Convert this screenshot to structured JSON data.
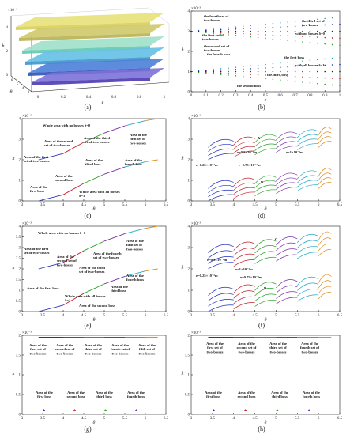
{
  "captions": [
    "(a)",
    "(b)",
    "(c)",
    "(d)",
    "(e)",
    "(f)",
    "(g)",
    "(h)"
  ],
  "axis": {
    "theta": "θ",
    "h": "h",
    "e": "e",
    "mult_e3": "×10⁻³"
  },
  "chart_data": [
    {
      "panel": "a",
      "type": "area",
      "title": "",
      "xlabel": "e",
      "ylabel": "θ",
      "zlabel": "h",
      "x_ticks": [
        "0",
        "0.2",
        "0.4",
        "0.6",
        "0.8",
        "1"
      ],
      "y_ticks": [
        "3",
        "4",
        "5",
        "6"
      ],
      "z_ticks": [
        "0",
        "2",
        "4"
      ],
      "exponent": "×10⁻³"
    },
    {
      "panel": "b",
      "type": "scatter",
      "title": "",
      "xlabel": "e",
      "ylabel": "h",
      "x_ticks": [
        "0",
        "0.1",
        "0.2",
        "0.3",
        "0.4",
        "0.5",
        "0.6",
        "0.7",
        "0.8",
        "0.9",
        "1"
      ],
      "xlim": [
        0,
        1
      ],
      "y_ticks": [
        "0",
        "1",
        "2",
        "3",
        "4"
      ],
      "ylim": [
        0,
        4
      ],
      "exponent": "×10⁻³",
      "annotations": [
        "the fourth set of two-bosses",
        "the third set of two-bosses",
        "without bosses δ=0",
        "the first set of two-bosses",
        "the second set of two-bosses",
        "the fourth boss",
        "the first boss",
        "with all bosses δ=1",
        "the third boss",
        "the second boss"
      ]
    },
    {
      "panel": "c",
      "type": "line",
      "title": "",
      "xlabel": "θ",
      "ylabel": "h",
      "x_ticks": [
        "3",
        "3.5",
        "4",
        "4.5",
        "5",
        "5.5",
        "6",
        "6.5"
      ],
      "xlim": [
        3,
        6.5
      ],
      "y_ticks": [
        "0",
        "1",
        "2",
        "3",
        "4"
      ],
      "ylim": [
        0,
        4
      ],
      "exponent": "×10⁻³",
      "series": [
        {
          "name": "",
          "x": [
            3.4,
            4.0,
            4.5,
            5.0,
            5.5,
            6.0,
            6.3
          ],
          "y": [
            2.0,
            2.3,
            2.85,
            3.3,
            3.65,
            3.9,
            4.0
          ]
        },
        {
          "name": "",
          "x": [
            3.4,
            4.0,
            4.5,
            5.0,
            5.5,
            6.0,
            6.3
          ],
          "y": [
            0.0,
            0.3,
            0.85,
            1.3,
            1.65,
            1.9,
            2.0
          ]
        }
      ],
      "annotations": [
        "Whole area with no bosses δ=0",
        "Area of the second set of two-bosses",
        "Area of the third set of two-bosses",
        "Area of the fifth set of two-bosses",
        "Area of the first set of two-bosses",
        "Area of the third boss",
        "Area of the fourth boss",
        "Area of the second boss",
        "Area of the first boss",
        "Whole area with all bosses δ=1"
      ]
    },
    {
      "panel": "d",
      "type": "line",
      "title": "",
      "xlabel": "θ",
      "ylabel": "h",
      "x_ticks": [
        "3",
        "3.5",
        "4",
        "4.5",
        "5",
        "5.5",
        "6",
        "6.5"
      ],
      "xlim": [
        3,
        6.5
      ],
      "y_ticks": [
        "0",
        "1",
        "2",
        "3",
        "4"
      ],
      "ylim": [
        0,
        4
      ],
      "exponent": "×10⁻³",
      "annotations": [
        "A",
        "e=1×10⁻³m",
        "e=0.5×10⁻³m",
        "e=0.25×10⁻³m",
        "e=0.75×10⁻³m",
        "B"
      ]
    },
    {
      "panel": "e",
      "type": "line",
      "title": "",
      "xlabel": "θ",
      "ylabel": "h",
      "x_ticks": [
        "3",
        "3.5",
        "4",
        "4.5",
        "5",
        "5.5",
        "6",
        "6.5"
      ],
      "xlim": [
        3,
        6.5
      ],
      "y_ticks": [
        "0",
        "0.5",
        "1",
        "1.5",
        "2",
        "2.5",
        "3",
        "3.5",
        "4"
      ],
      "ylim": [
        0,
        4
      ],
      "exponent": "×10⁻³",
      "series": [
        {
          "name": "",
          "x": [
            3.4,
            4.0,
            4.5,
            5.0,
            5.5,
            6.0,
            6.3
          ],
          "y": [
            2.0,
            2.3,
            2.85,
            3.3,
            3.65,
            3.9,
            4.0
          ]
        },
        {
          "name": "",
          "x": [
            3.4,
            4.0,
            4.5,
            5.0,
            5.5,
            6.0,
            6.3
          ],
          "y": [
            0.0,
            0.3,
            0.85,
            1.3,
            1.65,
            1.9,
            2.0
          ]
        }
      ],
      "annotations": [
        "Whole area with no bosses δ=0",
        "Area of the fifth set of two-bosses",
        "Area of the first set of two-bosses",
        "Area of the fourth set of two-bosses",
        "Area of the second set of two-bosses",
        "Area of the third set of two-bosses",
        "Area of the fourth boss",
        "Area of the third boss",
        "Area of the first boss",
        "Whole area with all bosses δ=1",
        "Area of the second boss"
      ]
    },
    {
      "panel": "f",
      "type": "line",
      "title": "",
      "xlabel": "θ",
      "ylabel": "h",
      "x_ticks": [
        "3",
        "3.5",
        "4",
        "4.5",
        "5",
        "5.5",
        "6",
        "6.5"
      ],
      "xlim": [
        3,
        6.5
      ],
      "y_ticks": [
        "0",
        "1",
        "2",
        "3",
        "4"
      ],
      "ylim": [
        0,
        4
      ],
      "exponent": "×10⁻³",
      "annotations": [
        "C",
        "e=0.5×10⁻³m",
        "e=1×10⁻³m",
        "e=0.25×10⁻³m",
        "e=0.75×10⁻³m",
        "D"
      ]
    },
    {
      "panel": "g",
      "type": "scatter",
      "title": "",
      "xlabel": "θ",
      "ylabel": "h",
      "x_ticks": [
        "3",
        "3.5",
        "4",
        "4.5",
        "5",
        "5.5",
        "6",
        "6.5"
      ],
      "xlim": [
        3,
        6.5
      ],
      "y_ticks": [
        "0",
        "0.5",
        "1",
        "1.5",
        "2"
      ],
      "ylim": [
        0,
        2
      ],
      "exponent": "×10⁻³",
      "annotations": [
        "Area of the first set of two-bosses",
        "Area of the second set of two-bosses",
        "Area of the third set of two-bosses",
        "Area of the fourth set of two-bosses",
        "Area of the fifth set of two-bosses",
        "Area of the first boss",
        "Area of the second boss",
        "Area of the third boss",
        "Area of the fourth boss"
      ]
    },
    {
      "panel": "h",
      "type": "scatter",
      "title": "",
      "xlabel": "θ",
      "ylabel": "h",
      "x_ticks": [
        "3",
        "3.5",
        "4",
        "4.5",
        "5",
        "5.5",
        "6",
        "6.5"
      ],
      "xlim": [
        3,
        6.5
      ],
      "y_ticks": [
        "0",
        "0.5",
        "1",
        "1.5",
        "2"
      ],
      "ylim": [
        0,
        2
      ],
      "exponent": "×10⁻³",
      "annotations": [
        "Area of the first set of two-bosses",
        "Area of the second set of two-bosses",
        "Area of the third set of two-bosses",
        "Area of the fourth set of two-bosses",
        "Area of the first boss",
        "Area of the second boss",
        "Area of the third boss",
        "Area of the fourth boss"
      ]
    }
  ]
}
